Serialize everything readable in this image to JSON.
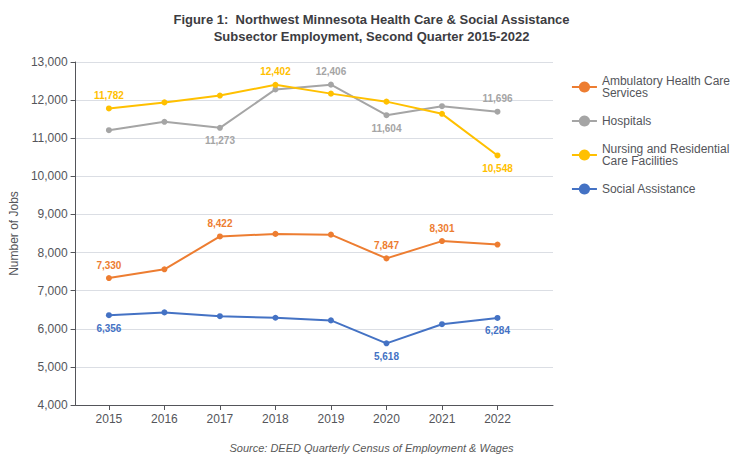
{
  "chart_data": {
    "type": "line",
    "title": "Figure 1:  Northwest Minnesota Health Care & Social Assistance\nSubsector Employment, Second Quarter 2015-2022",
    "ylabel": "Number of Jobs",
    "annotations": [
      "Source: DEED Quarterly Census of Employment & Wages"
    ],
    "x": [
      2015,
      2016,
      2017,
      2018,
      2019,
      2020,
      2021,
      2022
    ],
    "series": [
      {
        "name": "Ambulatory Health Care\nServices",
        "color": "#ED7D31",
        "values": [
          7330,
          7560,
          8422,
          8490,
          8470,
          7847,
          8301,
          8210
        ],
        "value_labels": [
          "7,330",
          null,
          "8,422",
          null,
          null,
          "7,847",
          "8,301",
          null
        ]
      },
      {
        "name": "Hospitals",
        "color": "#A5A5A5",
        "values": [
          11210,
          11430,
          11273,
          12280,
          12406,
          11604,
          11840,
          11696
        ],
        "value_labels": [
          null,
          null,
          "11,273",
          null,
          "12,406",
          "11,604",
          null,
          "11,696"
        ]
      },
      {
        "name": "Nursing and Residential\nCare Facilities",
        "color": "#FFC000",
        "values": [
          11782,
          11940,
          12120,
          12402,
          12170,
          11960,
          11640,
          10548
        ],
        "value_labels": [
          "11,782",
          null,
          null,
          "12,402",
          null,
          null,
          null,
          "10,548"
        ]
      },
      {
        "name": "Social Assistance",
        "color": "#4472C4",
        "values": [
          6356,
          6430,
          6330,
          6290,
          6220,
          5618,
          6120,
          6284
        ],
        "value_labels": [
          "6,356",
          null,
          null,
          null,
          null,
          "5,618",
          null,
          "6,284"
        ]
      }
    ],
    "xlim": [
      2014.4,
      2023.0
    ],
    "xticks": [
      2015,
      2016,
      2017,
      2018,
      2019,
      2020,
      2021,
      2022
    ],
    "ylim": [
      4000,
      13000
    ],
    "yticks": [
      {
        "value": 4000,
        "label": "4,000"
      },
      {
        "value": 5000,
        "label": "5,000"
      },
      {
        "value": 6000,
        "label": "6,000"
      },
      {
        "value": 7000,
        "label": "7,000"
      },
      {
        "value": 8000,
        "label": "8,000"
      },
      {
        "value": 9000,
        "label": "9,000"
      },
      {
        "value": 10000,
        "label": "10,000"
      },
      {
        "value": 11000,
        "label": "11,000"
      },
      {
        "value": 12000,
        "label": "12,000"
      },
      {
        "value": 13000,
        "label": "13,000"
      }
    ],
    "grid": true,
    "legend": "right",
    "marker": "circle",
    "data_labels": true
  }
}
